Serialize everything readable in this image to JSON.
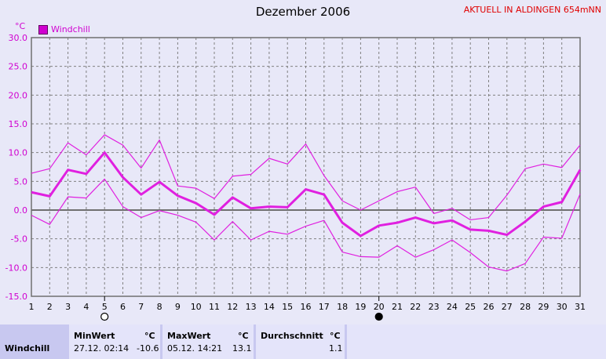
{
  "title": "Dezember 2006",
  "station": "AKTUELL IN ALDINGEN 654mNN",
  "colors": {
    "series": "#e020e0",
    "background": "#e8e8f8",
    "grid": "#808080"
  },
  "chart_data": {
    "type": "line",
    "ylabel": "°C",
    "ylim": [
      -15,
      30
    ],
    "yticks": [
      "30.0",
      "25.0",
      "20.0",
      "15.0",
      "10.0",
      "5.0",
      "0.0",
      "-5.0",
      "-10.0",
      "-15.0"
    ],
    "x": [
      1,
      2,
      3,
      4,
      5,
      6,
      7,
      8,
      9,
      10,
      11,
      12,
      13,
      14,
      15,
      16,
      17,
      18,
      19,
      20,
      21,
      22,
      23,
      24,
      25,
      26,
      27,
      28,
      29,
      30,
      31
    ],
    "legend": [
      "Windchill"
    ],
    "series": [
      {
        "name": "Windchill",
        "role": "avg",
        "values": [
          3.1,
          2.4,
          7.0,
          6.3,
          10.0,
          5.7,
          2.7,
          4.9,
          2.5,
          1.2,
          -0.8,
          2.2,
          0.3,
          0.6,
          0.5,
          3.6,
          2.7,
          -2.2,
          -4.5,
          -2.7,
          -2.2,
          -1.3,
          -2.3,
          -1.8,
          -3.4,
          -3.6,
          -4.3,
          -2.0,
          0.6,
          1.4,
          7.0
        ]
      },
      {
        "role": "max",
        "values": [
          6.4,
          7.2,
          11.7,
          9.6,
          13.1,
          11.3,
          7.3,
          12.2,
          4.2,
          3.8,
          2.0,
          5.9,
          6.2,
          9.0,
          8.0,
          11.5,
          6.0,
          1.6,
          0.0,
          1.6,
          3.2,
          4.0,
          -0.6,
          0.3,
          -1.7,
          -1.3,
          2.6,
          7.2,
          8.0,
          7.4,
          11.3
        ]
      },
      {
        "role": "min",
        "values": [
          -0.9,
          -2.5,
          2.3,
          2.1,
          5.4,
          0.6,
          -1.3,
          -0.1,
          -0.9,
          -2.1,
          -5.2,
          -2.0,
          -5.2,
          -3.7,
          -4.2,
          -2.8,
          -1.8,
          -7.3,
          -8.1,
          -8.2,
          -6.2,
          -8.2,
          -6.9,
          -5.2,
          -7.4,
          -9.9,
          -10.6,
          -9.3,
          -4.7,
          -4.9,
          2.8
        ]
      }
    ],
    "markers": [
      {
        "day": 5,
        "symbol": "○"
      },
      {
        "day": 20,
        "symbol": "●"
      }
    ],
    "grid": true
  },
  "stats": {
    "row_label": "Windchill",
    "min_header": "MinWert",
    "max_header": "MaxWert",
    "avg_header": "Durchschnitt",
    "unit": "°C",
    "min_time": "27.12.  02:14",
    "min_value": "-10.6",
    "max_time": "05.12.  14:21",
    "max_value": "13.1",
    "avg_value": "1.1"
  }
}
